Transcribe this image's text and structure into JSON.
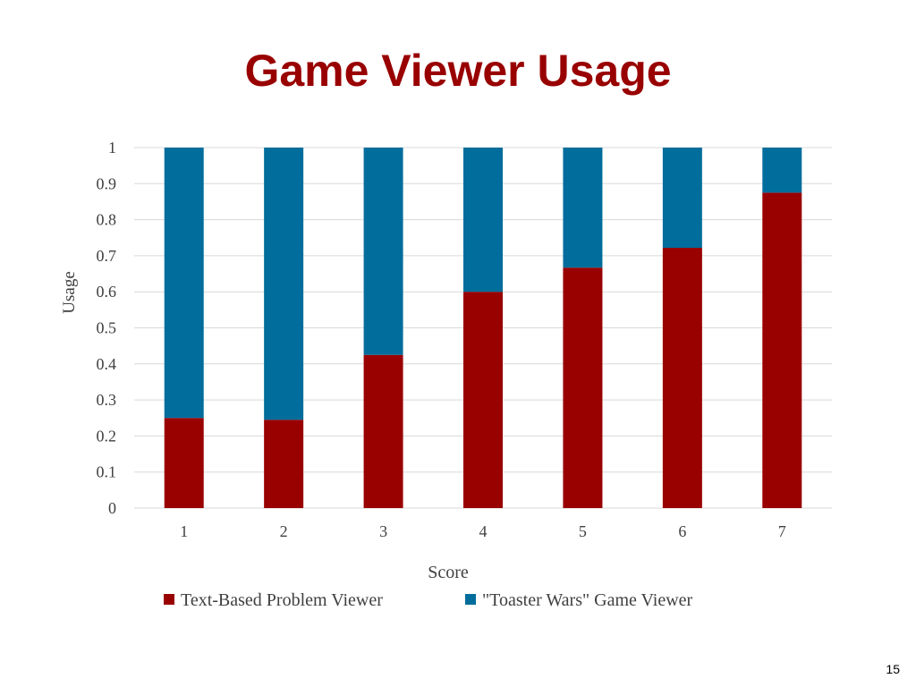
{
  "slide": {
    "title": "Game Viewer Usage",
    "page_number": "15"
  },
  "colors": {
    "title": "#990000",
    "series_text": "#990000",
    "series_game": "#006D9C",
    "grid": "#D9D9D9",
    "axis_text": "#404040"
  },
  "chart_data": {
    "type": "bar",
    "stacked": true,
    "title": "",
    "xlabel": "Score",
    "ylabel": "Usage",
    "categories": [
      "1",
      "2",
      "3",
      "4",
      "5",
      "6",
      "7"
    ],
    "ylim": [
      0,
      1
    ],
    "yticks": [
      "0",
      "0.1",
      "0.2",
      "0.3",
      "0.4",
      "0.5",
      "0.6",
      "0.7",
      "0.8",
      "0.9",
      "1"
    ],
    "grid": true,
    "legend_position": "bottom",
    "series": [
      {
        "name": "Text-Based Problem Viewer",
        "color": "#990000",
        "values": [
          0.25,
          0.245,
          0.425,
          0.6,
          0.667,
          0.722,
          0.875
        ]
      },
      {
        "name": "\"Toaster Wars\" Game Viewer",
        "color": "#006D9C",
        "values": [
          0.75,
          0.755,
          0.575,
          0.4,
          0.333,
          0.278,
          0.125
        ]
      }
    ]
  }
}
